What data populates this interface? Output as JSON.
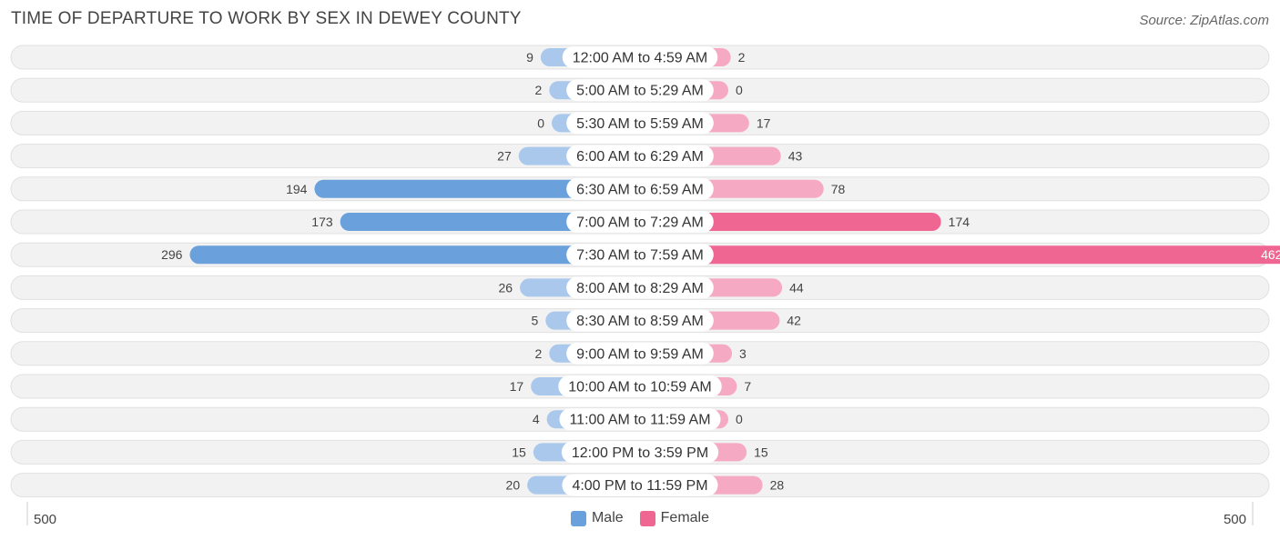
{
  "title": "TIME OF DEPARTURE TO WORK BY SEX IN DEWEY COUNTY",
  "source": "Source: ZipAtlas.com",
  "colors": {
    "male": "#a9c8eb",
    "male_strong": "#6aa1dc",
    "female": "#f5a9c3",
    "female_strong": "#f06693",
    "row_bg": "#f2f2f2",
    "row_border": "#e0e0e0"
  },
  "legend": {
    "male": "Male",
    "female": "Female"
  },
  "axis": {
    "left_label": "500",
    "right_label": "500"
  },
  "chart_data": {
    "type": "bar",
    "orientation": "horizontal-diverging",
    "title": "TIME OF DEPARTURE TO WORK BY SEX IN DEWEY COUNTY",
    "xlim": [
      -500,
      500
    ],
    "categories": [
      "12:00 AM to 4:59 AM",
      "5:00 AM to 5:29 AM",
      "5:30 AM to 5:59 AM",
      "6:00 AM to 6:29 AM",
      "6:30 AM to 6:59 AM",
      "7:00 AM to 7:29 AM",
      "7:30 AM to 7:59 AM",
      "8:00 AM to 8:29 AM",
      "8:30 AM to 8:59 AM",
      "9:00 AM to 9:59 AM",
      "10:00 AM to 10:59 AM",
      "11:00 AM to 11:59 AM",
      "12:00 PM to 3:59 PM",
      "4:00 PM to 11:59 PM"
    ],
    "series": [
      {
        "name": "Male",
        "values": [
          9,
          2,
          0,
          27,
          194,
          173,
          296,
          26,
          5,
          2,
          17,
          4,
          15,
          20
        ]
      },
      {
        "name": "Female",
        "values": [
          2,
          0,
          17,
          43,
          78,
          174,
          462,
          44,
          42,
          3,
          7,
          0,
          15,
          28
        ]
      }
    ]
  }
}
